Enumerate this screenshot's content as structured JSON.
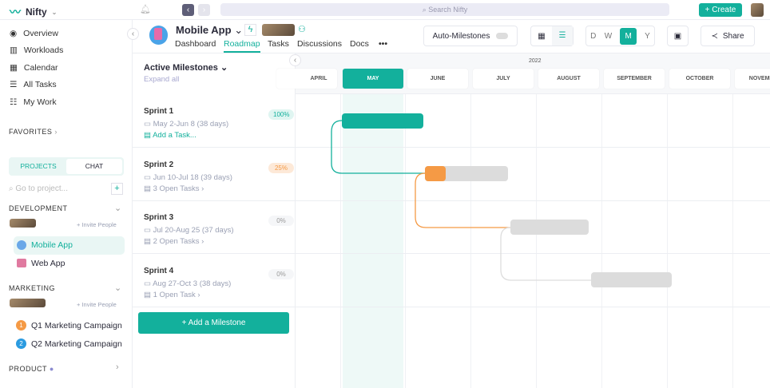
{
  "app": {
    "name": "Nifty",
    "search_placeholder": "Search Nifty",
    "create_label": "Create"
  },
  "sidebar": {
    "nav": [
      {
        "label": "Overview",
        "icon": "compass-icon"
      },
      {
        "label": "Workloads",
        "icon": "chart-icon"
      },
      {
        "label": "Calendar",
        "icon": "calendar-icon"
      },
      {
        "label": "All Tasks",
        "icon": "list-icon"
      },
      {
        "label": "My Work",
        "icon": "checklist-icon"
      }
    ],
    "favorites": "FAVORITES",
    "tabs": {
      "projects": "PROJECTS",
      "chat": "CHAT"
    },
    "project_search_placeholder": "Go to project...",
    "groups": [
      {
        "name": "DEVELOPMENT",
        "invite": "+ Invite People",
        "projects": [
          {
            "label": "Mobile App",
            "active": true
          },
          {
            "label": "Web App"
          }
        ]
      },
      {
        "name": "MARKETING",
        "invite": "+ Invite People",
        "projects": [
          {
            "label": "Q1 Marketing Campaign",
            "badge": "1",
            "color": "#f59a45"
          },
          {
            "label": "Q2 Marketing Campaign",
            "badge": "2",
            "color": "#2b9be0"
          }
        ]
      },
      {
        "name": "PRODUCT"
      }
    ]
  },
  "project": {
    "title": "Mobile App",
    "tabs": [
      "Dashboard",
      "Roadmap",
      "Tasks",
      "Discussions",
      "Docs",
      "•••"
    ],
    "active_tab": "Roadmap"
  },
  "toolbar": {
    "auto_milestones": "Auto-Milestones",
    "auto_milestones_on": false,
    "scales": [
      "D",
      "W",
      "M",
      "Y"
    ],
    "active_scale": "M",
    "share": "Share"
  },
  "milestones": {
    "title": "Active Milestones",
    "expand_all": "Expand all",
    "add_label": "+ Add a Milestone",
    "items": [
      {
        "name": "Sprint 1",
        "dates": "May 2-Jun 8 (38 days)",
        "tasks": "Add a Task...",
        "progress": "100%"
      },
      {
        "name": "Sprint 2",
        "dates": "Jun 10-Jul 18 (39 days)",
        "tasks": "3 Open Tasks",
        "progress": "25%"
      },
      {
        "name": "Sprint 3",
        "dates": "Jul 20-Aug 25 (37 days)",
        "tasks": "2 Open Tasks",
        "progress": "0%"
      },
      {
        "name": "Sprint 4",
        "dates": "Aug 27-Oct 3 (38 days)",
        "tasks": "1 Open Task",
        "progress": "0%"
      }
    ]
  },
  "timeline": {
    "year": "2022",
    "months": [
      "APRIL",
      "MAY",
      "JUNE",
      "JULY",
      "AUGUST",
      "SEPTEMBER",
      "OCTOBER",
      "NOVEMBER"
    ],
    "current_month": "MAY"
  },
  "colors": {
    "accent": "#13b09c",
    "orange": "#f59a45",
    "bar_grey": "#dcdcdc"
  }
}
